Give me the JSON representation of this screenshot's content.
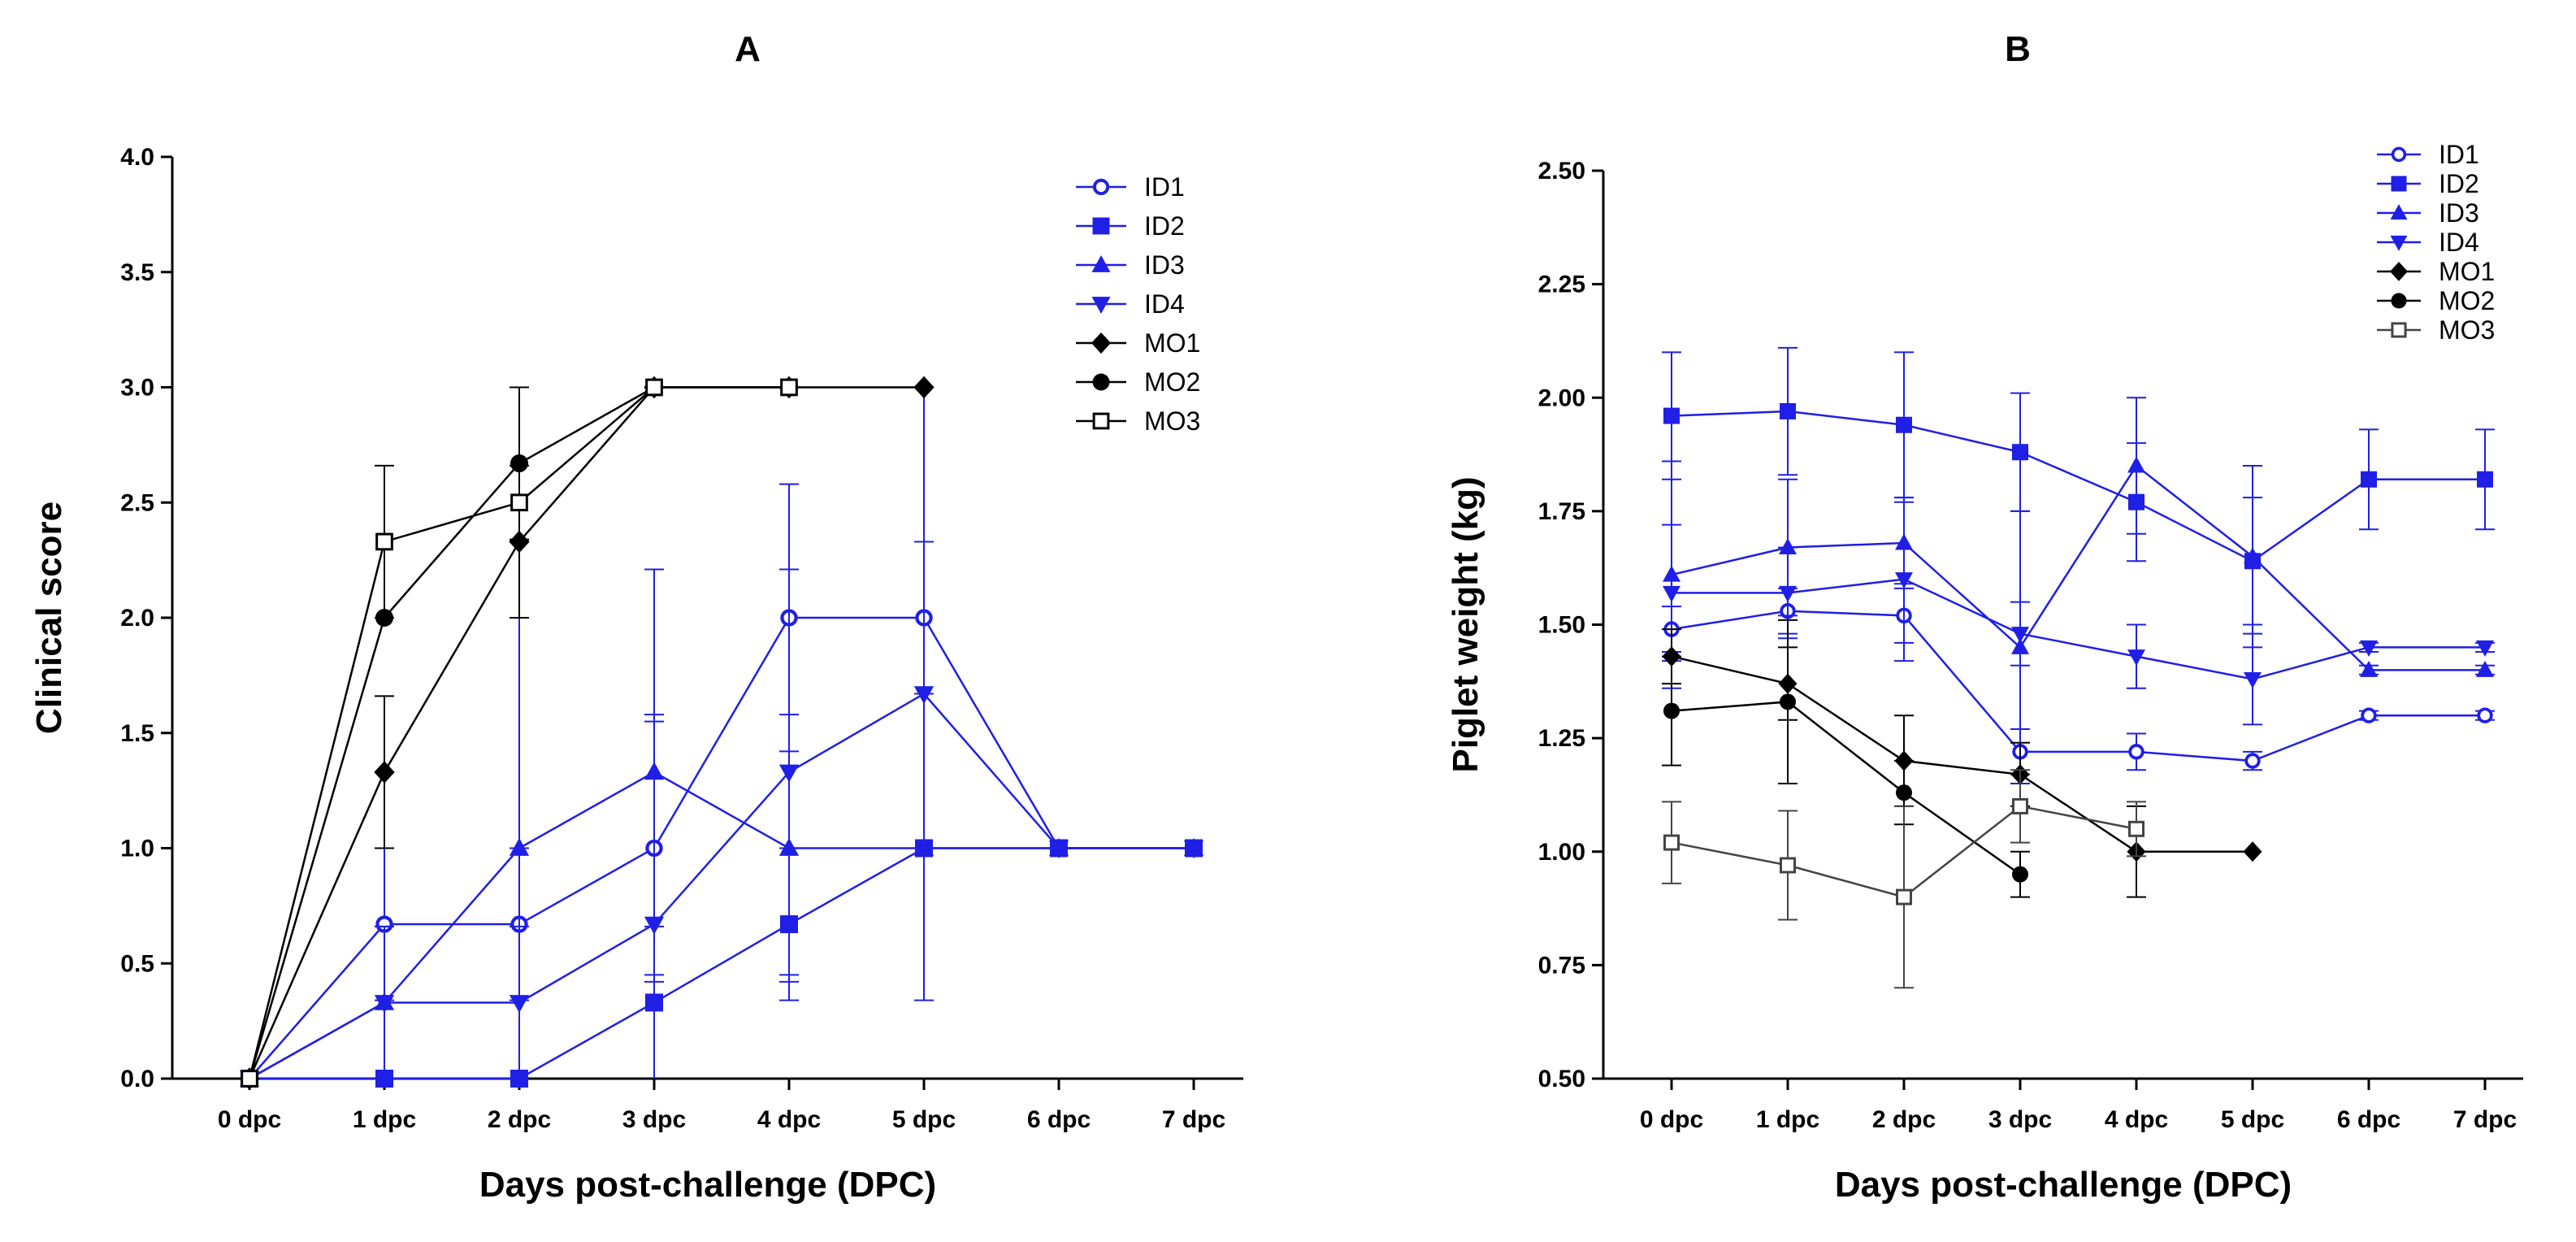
{
  "figure": {
    "colors": {
      "blue": "#1f1fe6",
      "black": "#000000",
      "gray": "#444444"
    }
  },
  "chart_data": [
    {
      "type": "line",
      "panel": "A",
      "title": "A",
      "xlabel": "Days post-challenge (DPC)",
      "ylabel": "Clinical score",
      "categories": [
        "0 dpc",
        "1 dpc",
        "2 dpc",
        "3 dpc",
        "4 dpc",
        "5 dpc",
        "6 dpc",
        "7 dpc"
      ],
      "ylim": [
        0,
        4.0
      ],
      "yticks": [
        "0.0",
        "0.5",
        "1.0",
        "1.5",
        "2.0",
        "2.5",
        "3.0",
        "3.5",
        "4.0"
      ],
      "yticks_values": [
        0,
        0.5,
        1.0,
        1.5,
        2.0,
        2.5,
        3.0,
        3.5,
        4.0
      ],
      "grid": false,
      "legend_position": "top-right",
      "series": [
        {
          "name": "ID1",
          "color": "#1f1fe6",
          "marker": "circle-open",
          "values": [
            0,
            0.67,
            0.67,
            1.0,
            2.0,
            2.0,
            1.0,
            1.0
          ],
          "errors": [
            0,
            0.33,
            0.33,
            0.58,
            0.58,
            0.33,
            0,
            0
          ]
        },
        {
          "name": "ID2",
          "color": "#1f1fe6",
          "marker": "square",
          "values": [
            0,
            0,
            0,
            0.33,
            0.67,
            1.0,
            1.0,
            1.0
          ],
          "errors": [
            0,
            0,
            0,
            0.33,
            0.33,
            0,
            0,
            0
          ]
        },
        {
          "name": "ID3",
          "color": "#1f1fe6",
          "marker": "triangle-up",
          "values": [
            0,
            0.33,
            1.0,
            1.33,
            1.0,
            1.0,
            1.0,
            1.0
          ],
          "errors": [
            0,
            0.33,
            1.0,
            0.88,
            0.58,
            0,
            0,
            0
          ]
        },
        {
          "name": "ID4",
          "color": "#1f1fe6",
          "marker": "triangle-down",
          "values": [
            0,
            0.33,
            0.33,
            0.67,
            1.33,
            1.67,
            1.0,
            1.0
          ],
          "errors": [
            0,
            0.33,
            0.33,
            0.88,
            0.88,
            1.33,
            0,
            0
          ]
        },
        {
          "name": "MO1",
          "color": "#000000",
          "marker": "diamond",
          "values": [
            0,
            1.33,
            2.33,
            3.0,
            3.0,
            3.0,
            null,
            null
          ],
          "errors": [
            0,
            0.33,
            0.33,
            0,
            0,
            0,
            null,
            null
          ]
        },
        {
          "name": "MO2",
          "color": "#000000",
          "marker": "circle",
          "values": [
            0,
            2.0,
            2.67,
            3.0,
            3.0,
            null,
            null,
            null
          ],
          "errors": [
            0,
            0,
            0.33,
            0,
            0,
            null,
            null,
            null
          ]
        },
        {
          "name": "MO3",
          "color": "#000000",
          "marker": "square-open",
          "values": [
            0,
            2.33,
            2.5,
            3.0,
            3.0,
            null,
            null,
            null
          ],
          "errors": [
            0,
            0.33,
            0.5,
            0,
            0,
            null,
            null,
            null
          ]
        }
      ]
    },
    {
      "type": "line",
      "panel": "B",
      "title": "B",
      "xlabel": "Days post-challenge (DPC)",
      "ylabel": "Piglet weight (kg)",
      "categories": [
        "0 dpc",
        "1 dpc",
        "2 dpc",
        "3 dpc",
        "4 dpc",
        "5 dpc",
        "6 dpc",
        "7 dpc"
      ],
      "ylim": [
        0.5,
        2.5
      ],
      "yticks": [
        "0.50",
        "0.75",
        "1.00",
        "1.25",
        "1.50",
        "1.75",
        "2.00",
        "2.25",
        "2.50"
      ],
      "yticks_values": [
        0.5,
        0.75,
        1.0,
        1.25,
        1.5,
        1.75,
        2.0,
        2.25,
        2.5
      ],
      "grid": false,
      "legend_position": "top-right",
      "series": [
        {
          "name": "ID1",
          "color": "#1f1fe6",
          "marker": "circle-open",
          "values": [
            1.49,
            1.53,
            1.52,
            1.22,
            1.22,
            1.2,
            1.3,
            1.3
          ],
          "errors": [
            0.05,
            0.05,
            0.06,
            0.05,
            0.04,
            0.02,
            0.01,
            0.01
          ]
        },
        {
          "name": "ID2",
          "color": "#1f1fe6",
          "marker": "square",
          "values": [
            1.96,
            1.97,
            1.94,
            1.88,
            1.77,
            1.64,
            1.82,
            1.82
          ],
          "errors": [
            0.14,
            0.14,
            0.16,
            0.13,
            0.13,
            0.14,
            0.11,
            0.11
          ]
        },
        {
          "name": "ID3",
          "color": "#1f1fe6",
          "marker": "triangle-up",
          "values": [
            1.61,
            1.67,
            1.68,
            1.45,
            1.85,
            1.65,
            1.4,
            1.4
          ],
          "errors": [
            0.25,
            0.15,
            0.09,
            0.3,
            0.15,
            0.2,
            0.01,
            0.01
          ]
        },
        {
          "name": "ID4",
          "color": "#1f1fe6",
          "marker": "triangle-down",
          "values": [
            1.57,
            1.57,
            1.6,
            1.48,
            1.43,
            1.38,
            1.45,
            1.45
          ],
          "errors": [
            0.15,
            0.1,
            0.18,
            0.07,
            0.07,
            0.1,
            0.01,
            0.01
          ]
        },
        {
          "name": "MO1",
          "color": "#000000",
          "marker": "diamond",
          "values": [
            1.43,
            1.37,
            1.2,
            1.17,
            1.0,
            1.0,
            null,
            null
          ],
          "errors": [
            0.06,
            0.08,
            0.1,
            0.07,
            0.1,
            0.0,
            null,
            null
          ]
        },
        {
          "name": "MO2",
          "color": "#000000",
          "marker": "circle",
          "values": [
            1.31,
            1.33,
            1.13,
            0.95,
            null,
            null,
            null,
            null
          ],
          "errors": [
            0.12,
            0.18,
            0.07,
            0.05,
            null,
            null,
            null,
            null
          ]
        },
        {
          "name": "MO3",
          "color": "#444444",
          "marker": "square-open",
          "values": [
            1.02,
            0.97,
            0.9,
            1.1,
            1.05,
            null,
            null,
            null
          ],
          "errors": [
            0.09,
            0.12,
            0.2,
            0.08,
            0.06,
            null,
            null,
            null
          ]
        }
      ]
    }
  ]
}
